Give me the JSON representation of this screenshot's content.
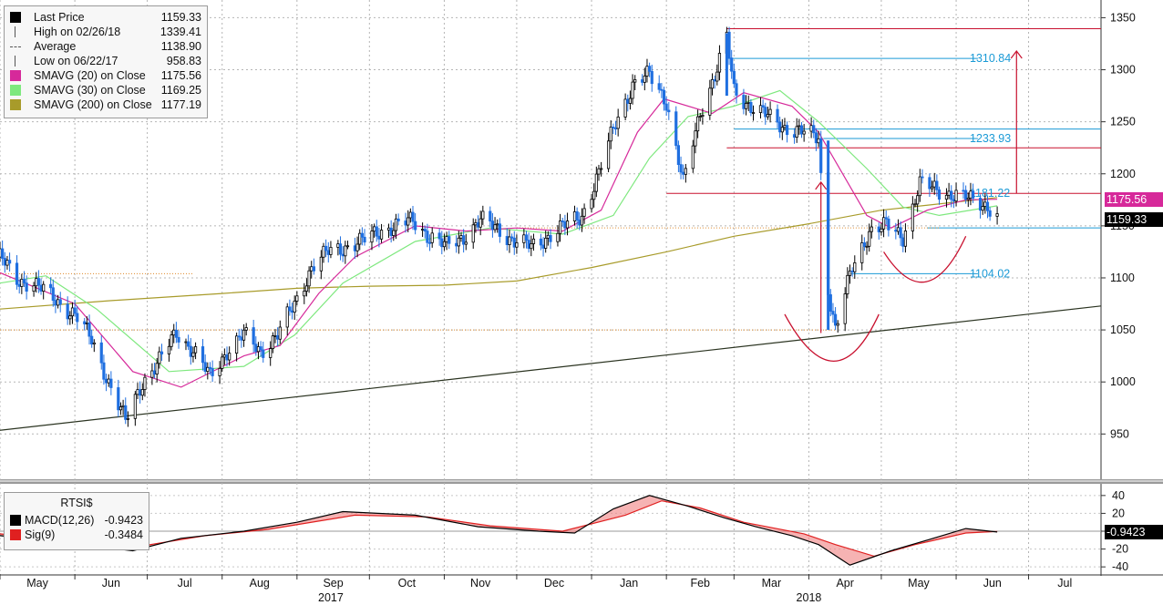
{
  "colors": {
    "candle_up": "#000000",
    "candle_down": "#1f6fe0",
    "sma20": "#d6299a",
    "sma30": "#7ee87e",
    "sma200": "#a89b2a",
    "macd": "#000000",
    "signal": "#e02020",
    "trend": "#2a3320",
    "annotation_red": "#c8102e",
    "annotation_blue": "#1a9ad6"
  },
  "legend": {
    "items": [
      {
        "icon": "square-icon",
        "color": "#000000",
        "label": "Last Price",
        "value": "1159.33"
      },
      {
        "icon": "high-marker-icon",
        "color": "#555555",
        "label": "High on 02/26/18",
        "value": "1339.41"
      },
      {
        "icon": "average-line-icon",
        "color": "#555555",
        "label": "Average",
        "value": "1138.90"
      },
      {
        "icon": "low-marker-icon",
        "color": "#555555",
        "label": "Low on 06/22/17",
        "value": "958.83"
      },
      {
        "icon": "square-icon",
        "color": "#d6299a",
        "label": "SMAVG (20) on Close",
        "value": "1175.56"
      },
      {
        "icon": "square-icon",
        "color": "#7ee87e",
        "label": "SMAVG (30) on Close",
        "value": "1169.25"
      },
      {
        "icon": "square-icon",
        "color": "#a89b2a",
        "label": "SMAVG (200) on Close",
        "value": "1177.19"
      }
    ]
  },
  "macd_legend": {
    "title": "RTSI$",
    "items": [
      {
        "color": "#000000",
        "label": "MACD(12,26)",
        "value": "-0.9423"
      },
      {
        "color": "#e02020",
        "label": "Sig(9)",
        "value": "-0.3484"
      }
    ]
  },
  "price_tags": {
    "sma20": {
      "text": "1175.56",
      "value": 1175.56,
      "color": "#d6299a"
    },
    "last": {
      "text": "1159.33",
      "value": 1159.33,
      "color": "#000000"
    },
    "macd": {
      "text": "-0.9423",
      "value": -0.9423,
      "color": "#000000"
    }
  },
  "annotations": {
    "labels": [
      {
        "text": "1310.84",
        "value": 1310.84
      },
      {
        "text": "1233.93",
        "value": 1233.93
      },
      {
        "text": "1181.22",
        "value": 1181.22
      },
      {
        "text": "1104.02",
        "value": 1104.02
      }
    ]
  },
  "chart_data": {
    "type": "candlestick",
    "ticker": "RTSI$",
    "y_axis": {
      "range": [
        910,
        1360
      ],
      "ticks": [
        950,
        1000,
        1050,
        1100,
        1150,
        1200,
        1250,
        1300,
        1350
      ],
      "side": "right"
    },
    "macd_axis": {
      "range": [
        -48,
        48
      ],
      "ticks": [
        40,
        20,
        0,
        -20,
        -40
      ]
    },
    "x_axis": {
      "range": [
        "2017-05-01",
        "2018-07-31"
      ],
      "months": [
        {
          "label": "May",
          "date": "2017-05-01"
        },
        {
          "label": "Jun",
          "date": "2017-06-01"
        },
        {
          "label": "Jul",
          "date": "2017-07-01"
        },
        {
          "label": "Aug",
          "date": "2017-08-01"
        },
        {
          "label": "Sep",
          "date": "2017-09-01"
        },
        {
          "label": "Oct",
          "date": "2017-10-01"
        },
        {
          "label": "Nov",
          "date": "2017-11-01"
        },
        {
          "label": "Dec",
          "date": "2017-12-01"
        },
        {
          "label": "Jan",
          "date": "2018-01-01"
        },
        {
          "label": "Feb",
          "date": "2018-02-01"
        },
        {
          "label": "Mar",
          "date": "2018-03-01"
        },
        {
          "label": "Apr",
          "date": "2018-04-01"
        },
        {
          "label": "May",
          "date": "2018-05-01"
        },
        {
          "label": "Jun",
          "date": "2018-06-01"
        },
        {
          "label": "Jul",
          "date": "2018-07-01"
        }
      ],
      "years": [
        {
          "label": "2017",
          "date": "2017-09-15"
        },
        {
          "label": "2018",
          "date": "2018-04-01"
        }
      ]
    },
    "price_path": [
      [
        "2017-05-01",
        1120
      ],
      [
        "2017-05-08",
        1098
      ],
      [
        "2017-05-15",
        1095
      ],
      [
        "2017-05-22",
        1082
      ],
      [
        "2017-06-01",
        1065
      ],
      [
        "2017-06-08",
        1040
      ],
      [
        "2017-06-15",
        1000
      ],
      [
        "2017-06-22",
        962
      ],
      [
        "2017-06-29",
        1000
      ],
      [
        "2017-07-06",
        1020
      ],
      [
        "2017-07-13",
        1048
      ],
      [
        "2017-07-20",
        1030
      ],
      [
        "2017-07-27",
        1005
      ],
      [
        "2017-08-03",
        1030
      ],
      [
        "2017-08-10",
        1045
      ],
      [
        "2017-08-17",
        1030
      ],
      [
        "2017-08-24",
        1045
      ],
      [
        "2017-08-31",
        1075
      ],
      [
        "2017-09-07",
        1110
      ],
      [
        "2017-09-14",
        1125
      ],
      [
        "2017-09-21",
        1130
      ],
      [
        "2017-09-28",
        1135
      ],
      [
        "2017-10-05",
        1145
      ],
      [
        "2017-10-12",
        1150
      ],
      [
        "2017-10-19",
        1155
      ],
      [
        "2017-10-26",
        1140
      ],
      [
        "2017-11-02",
        1130
      ],
      [
        "2017-11-09",
        1140
      ],
      [
        "2017-11-16",
        1155
      ],
      [
        "2017-11-23",
        1148
      ],
      [
        "2017-11-30",
        1135
      ],
      [
        "2017-12-07",
        1130
      ],
      [
        "2017-12-14",
        1140
      ],
      [
        "2017-12-21",
        1150
      ],
      [
        "2017-12-28",
        1160
      ],
      [
        "2018-01-04",
        1200
      ],
      [
        "2018-01-11",
        1250
      ],
      [
        "2018-01-18",
        1285
      ],
      [
        "2018-01-25",
        1295
      ],
      [
        "2018-02-01",
        1270
      ],
      [
        "2018-02-08",
        1190
      ],
      [
        "2018-02-15",
        1260
      ],
      [
        "2018-02-22",
        1300
      ],
      [
        "2018-02-26",
        1330
      ],
      [
        "2018-03-01",
        1280
      ],
      [
        "2018-03-08",
        1265
      ],
      [
        "2018-03-15",
        1255
      ],
      [
        "2018-03-22",
        1245
      ],
      [
        "2018-03-29",
        1240
      ],
      [
        "2018-04-05",
        1235
      ],
      [
        "2018-04-09",
        1090
      ],
      [
        "2018-04-12",
        1050
      ],
      [
        "2018-04-19",
        1110
      ],
      [
        "2018-04-26",
        1145
      ],
      [
        "2018-05-03",
        1150
      ],
      [
        "2018-05-10",
        1140
      ],
      [
        "2018-05-17",
        1190
      ],
      [
        "2018-05-24",
        1185
      ],
      [
        "2018-05-31",
        1180
      ],
      [
        "2018-06-07",
        1175
      ],
      [
        "2018-06-14",
        1170
      ],
      [
        "2018-06-18",
        1159.33
      ]
    ],
    "high": {
      "date": "2018-02-26",
      "value": 1339.41
    },
    "low": {
      "date": "2017-06-22",
      "value": 958.83
    },
    "sma20": [
      [
        "2017-05-01",
        1105
      ],
      [
        "2017-06-01",
        1075
      ],
      [
        "2017-06-25",
        1010
      ],
      [
        "2017-07-15",
        995
      ],
      [
        "2017-08-10",
        1025
      ],
      [
        "2017-08-25",
        1035
      ],
      [
        "2017-09-10",
        1085
      ],
      [
        "2017-09-25",
        1120
      ],
      [
        "2017-10-20",
        1150
      ],
      [
        "2017-11-10",
        1145
      ],
      [
        "2017-12-01",
        1148
      ],
      [
        "2017-12-20",
        1145
      ],
      [
        "2018-01-05",
        1165
      ],
      [
        "2018-01-20",
        1240
      ],
      [
        "2018-01-31",
        1272
      ],
      [
        "2018-02-20",
        1258
      ],
      [
        "2018-03-05",
        1278
      ],
      [
        "2018-03-25",
        1265
      ],
      [
        "2018-04-05",
        1240
      ],
      [
        "2018-04-25",
        1160
      ],
      [
        "2018-05-05",
        1148
      ],
      [
        "2018-05-20",
        1165
      ],
      [
        "2018-06-05",
        1175
      ],
      [
        "2018-06-18",
        1175.56
      ]
    ],
    "sma30": [
      [
        "2017-05-01",
        1095
      ],
      [
        "2017-05-20",
        1102
      ],
      [
        "2017-06-10",
        1070
      ],
      [
        "2017-07-10",
        1010
      ],
      [
        "2017-08-10",
        1015
      ],
      [
        "2017-08-31",
        1045
      ],
      [
        "2017-09-20",
        1095
      ],
      [
        "2017-10-20",
        1135
      ],
      [
        "2017-11-20",
        1148
      ],
      [
        "2017-12-20",
        1142
      ],
      [
        "2018-01-10",
        1160
      ],
      [
        "2018-01-25",
        1215
      ],
      [
        "2018-02-10",
        1255
      ],
      [
        "2018-03-01",
        1265
      ],
      [
        "2018-03-20",
        1280
      ],
      [
        "2018-04-05",
        1250
      ],
      [
        "2018-04-25",
        1205
      ],
      [
        "2018-05-10",
        1168
      ],
      [
        "2018-05-25",
        1160
      ],
      [
        "2018-06-18",
        1169.25
      ]
    ],
    "sma200": [
      [
        "2017-05-01",
        1070
      ],
      [
        "2017-06-15",
        1078
      ],
      [
        "2017-08-01",
        1085
      ],
      [
        "2017-09-01",
        1090
      ],
      [
        "2017-10-01",
        1092
      ],
      [
        "2017-11-01",
        1093
      ],
      [
        "2017-12-01",
        1097
      ],
      [
        "2018-01-01",
        1110
      ],
      [
        "2018-02-01",
        1125
      ],
      [
        "2018-03-01",
        1140
      ],
      [
        "2018-04-01",
        1152
      ],
      [
        "2018-05-01",
        1165
      ],
      [
        "2018-06-18",
        1177.19
      ]
    ],
    "trendline": [
      [
        "2017-04-25",
        952
      ],
      [
        "2018-07-31",
        1073
      ]
    ],
    "horizontal_levels": [
      {
        "value": 1339.41,
        "color": "#c8102e",
        "from": "2018-02-26",
        "to": "2018-07-31"
      },
      {
        "value": 1310.84,
        "color": "#1a9ad6",
        "from": "2018-02-26",
        "to": "2018-06-10"
      },
      {
        "value": 1243,
        "color": "#1a9ad6",
        "from": "2018-03-01",
        "to": "2018-07-31"
      },
      {
        "value": 1233.93,
        "color": "#1a9ad6",
        "from": "2018-04-07",
        "to": "2018-06-10"
      },
      {
        "value": 1225,
        "color": "#c8102e",
        "from": "2018-02-26",
        "to": "2018-07-31"
      },
      {
        "value": 1181.22,
        "color": "#c8102e",
        "from": "2018-02-01",
        "to": "2018-07-31"
      },
      {
        "value": 1148,
        "color": "#1a9ad6",
        "from": "2018-05-20",
        "to": "2018-07-31"
      },
      {
        "value": 1104.02,
        "color": "#1a9ad6",
        "from": "2018-04-18",
        "to": "2018-06-10"
      }
    ],
    "macd": [
      [
        "2017-05-01",
        -5
      ],
      [
        "2017-05-25",
        -12
      ],
      [
        "2017-06-25",
        -22
      ],
      [
        "2017-07-15",
        -8
      ],
      [
        "2017-08-10",
        0
      ],
      [
        "2017-09-01",
        10
      ],
      [
        "2017-09-20",
        22
      ],
      [
        "2017-10-20",
        18
      ],
      [
        "2017-11-15",
        5
      ],
      [
        "2017-12-10",
        0
      ],
      [
        "2017-12-25",
        -2
      ],
      [
        "2018-01-10",
        25
      ],
      [
        "2018-01-25",
        40
      ],
      [
        "2018-02-10",
        28
      ],
      [
        "2018-02-25",
        15
      ],
      [
        "2018-03-10",
        5
      ],
      [
        "2018-03-25",
        -5
      ],
      [
        "2018-04-05",
        -15
      ],
      [
        "2018-04-18",
        -38
      ],
      [
        "2018-05-05",
        -22
      ],
      [
        "2018-05-20",
        -10
      ],
      [
        "2018-06-05",
        3
      ],
      [
        "2018-06-18",
        -0.9423
      ]
    ],
    "signal": [
      [
        "2017-05-01",
        -3
      ],
      [
        "2017-06-01",
        -12
      ],
      [
        "2017-06-30",
        -16
      ],
      [
        "2017-07-25",
        -5
      ],
      [
        "2017-08-20",
        2
      ],
      [
        "2017-09-25",
        18
      ],
      [
        "2017-10-25",
        16
      ],
      [
        "2017-11-20",
        6
      ],
      [
        "2017-12-20",
        0
      ],
      [
        "2018-01-15",
        18
      ],
      [
        "2018-01-30",
        34
      ],
      [
        "2018-02-15",
        26
      ],
      [
        "2018-03-05",
        10
      ],
      [
        "2018-03-30",
        -3
      ],
      [
        "2018-04-12",
        -15
      ],
      [
        "2018-04-28",
        -28
      ],
      [
        "2018-05-15",
        -15
      ],
      [
        "2018-06-05",
        -2
      ],
      [
        "2018-06-18",
        -0.3484
      ]
    ]
  }
}
